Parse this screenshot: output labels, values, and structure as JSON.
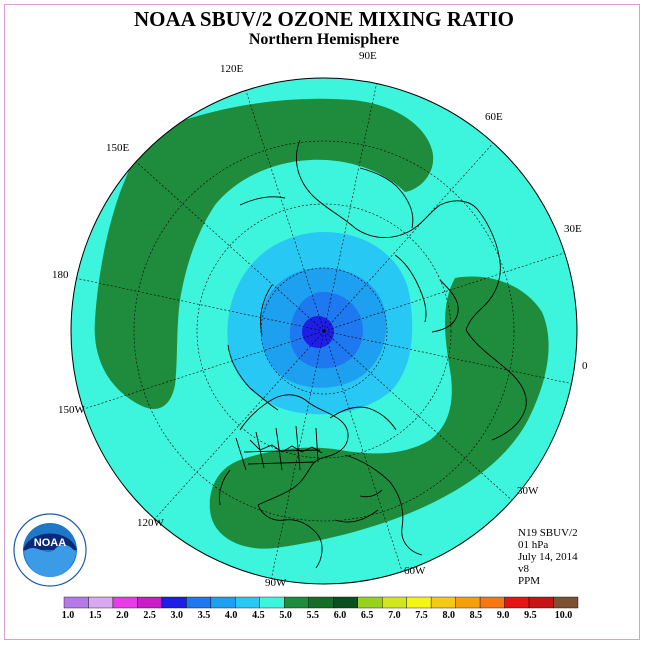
{
  "title": "NOAA SBUV/2 OZONE MIXING RATIO",
  "subtitle": "Northern Hemisphere",
  "longitude_labels": [
    {
      "text": "90E"
    },
    {
      "text": "60E"
    },
    {
      "text": "30E"
    },
    {
      "text": "0"
    },
    {
      "text": "30W"
    },
    {
      "text": "60W"
    },
    {
      "text": "90W"
    },
    {
      "text": "120W"
    },
    {
      "text": "150W"
    },
    {
      "text": "180"
    },
    {
      "text": "150E"
    },
    {
      "text": "120E"
    }
  ],
  "info": {
    "satellite": "N19 SBUV/2",
    "level": "01 hPa",
    "date": "July 14, 2014",
    "version": "v8",
    "units": "PPM"
  },
  "colorbar": {
    "colors": [
      "#b47be8",
      "#d8a8f0",
      "#e83ce8",
      "#c81ec8",
      "#1e1ee6",
      "#1e78f0",
      "#1ea0f0",
      "#28c8f5",
      "#3cf5dc",
      "#1e8c3c",
      "#146e28",
      "#0a501e",
      "#96d21e",
      "#d2e61e",
      "#f5f514",
      "#f5c814",
      "#f5a00a",
      "#f57814",
      "#e61414",
      "#c81414",
      "#7d5032"
    ],
    "labels": [
      "1.0",
      "1.5",
      "2.0",
      "2.5",
      "3.0",
      "3.5",
      "4.0",
      "4.5",
      "5.0",
      "5.5",
      "6.0",
      "6.5",
      "7.0",
      "7.5",
      "8.0",
      "8.5",
      "9.0",
      "9.5",
      "10.0"
    ]
  },
  "colors": {
    "level_4_5": "#3cf5dc",
    "level_5_0": "#1e8c3c",
    "level_4_0": "#28c8f5",
    "level_3_5": "#1ea0f0",
    "level_3_0": "#1e78f0",
    "level_2_5": "#1e1ee6"
  },
  "logo": {
    "name": "noaa-logo",
    "text": "NOAA"
  }
}
